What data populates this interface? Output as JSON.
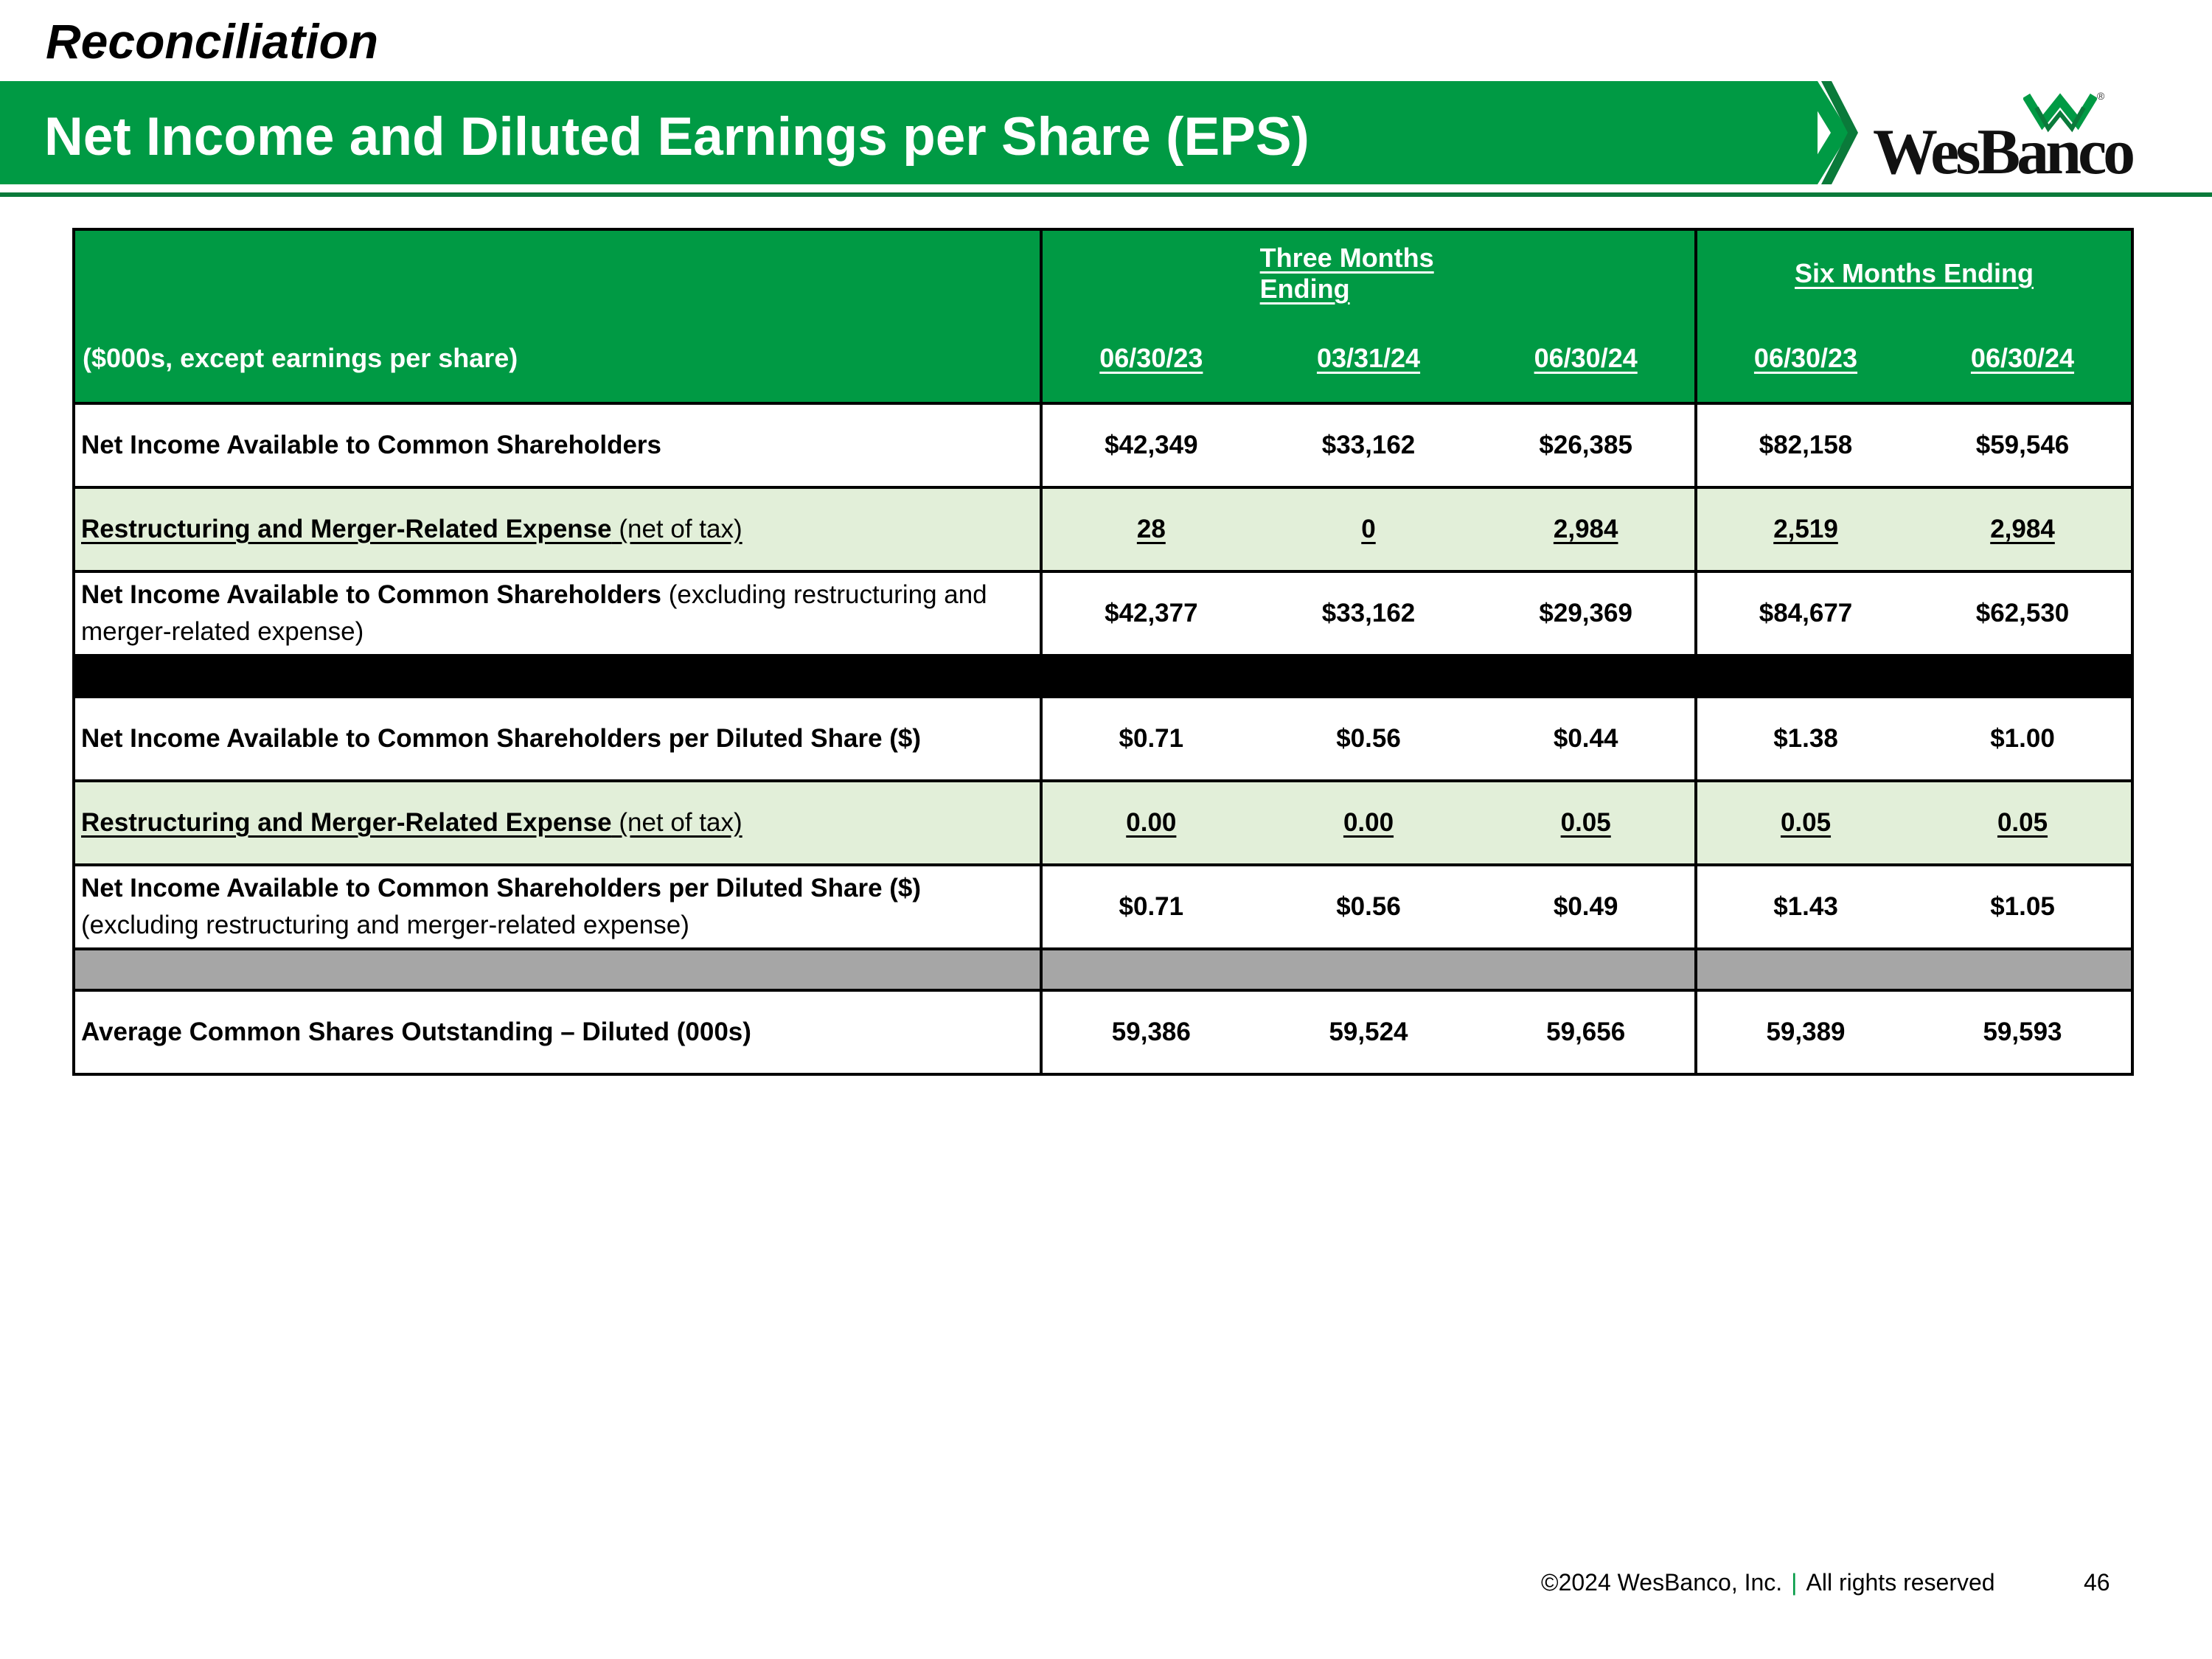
{
  "section_title": "Reconciliation",
  "page_title": "Net Income and Diluted Earnings per Share (EPS)",
  "logo": {
    "text": "WesBanco",
    "reg": "®"
  },
  "table": {
    "units_label": "($000s, except earnings per share)",
    "groups": {
      "three_months": "Three Months Ending",
      "six_months": "Six Months Ending"
    },
    "dates": [
      "06/30/23",
      "03/31/24",
      "06/30/24",
      "06/30/23",
      "06/30/24"
    ],
    "rows": [
      {
        "label_bold": "Net Income Available to Common Shareholders",
        "label_normal": "",
        "values": [
          "$42,349",
          "$33,162",
          "$26,385",
          "$82,158",
          "$59,546"
        ]
      },
      {
        "label_bold": "Restructuring and Merger-Related Expense",
        "label_normal": " (net of tax)",
        "values": [
          "28",
          "0",
          "2,984",
          "2,519",
          "2,984"
        ]
      },
      {
        "label_bold": "Net Income Available to Common Shareholders",
        "label_normal": " (excluding restructuring and merger-related expense)",
        "values": [
          "$42,377",
          "$33,162",
          "$29,369",
          "$84,677",
          "$62,530"
        ]
      },
      {
        "label_bold": "Net Income Available to Common Shareholders per Diluted Share ($)",
        "label_normal": "",
        "values": [
          "$0.71",
          "$0.56",
          "$0.44",
          "$1.38",
          "$1.00"
        ]
      },
      {
        "label_bold": "Restructuring and Merger-Related Expense",
        "label_normal": " (net of tax)",
        "values": [
          "0.00",
          "0.00",
          "0.05",
          "0.05",
          "0.05"
        ]
      },
      {
        "label_bold": "Net Income Available to Common Shareholders per Diluted Share ($)",
        "label_normal": "(excluding restructuring and merger-related expense)",
        "values": [
          "$0.71",
          "$0.56",
          "$0.49",
          "$1.43",
          "$1.05"
        ]
      },
      {
        "label_bold": "Average Common Shares Outstanding – Diluted (000s)",
        "label_normal": "",
        "values": [
          "59,386",
          "59,524",
          "59,656",
          "59,389",
          "59,593"
        ]
      }
    ]
  },
  "footer": {
    "copyright": "©2024 WesBanco, Inc.",
    "separator": "|",
    "rights": "All rights reserved",
    "page_number": "46"
  }
}
